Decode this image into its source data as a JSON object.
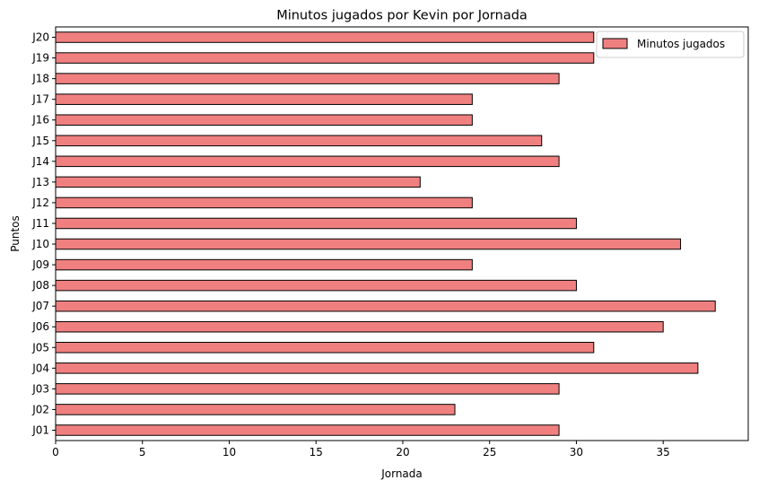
{
  "chart_data": {
    "type": "bar",
    "orientation": "horizontal",
    "title": "Minutos jugados por Kevin por Jornada",
    "xlabel": "Jornada",
    "ylabel": "Puntos",
    "categories": [
      "J01",
      "J02",
      "J03",
      "J04",
      "J05",
      "J06",
      "J07",
      "J08",
      "J09",
      "J10",
      "J11",
      "J12",
      "J13",
      "J14",
      "J15",
      "J16",
      "J17",
      "J18",
      "J19",
      "J20"
    ],
    "series": [
      {
        "name": "Minutos jugados",
        "values": [
          29,
          23,
          29,
          37,
          31,
          35,
          38,
          30,
          24,
          36,
          30,
          24,
          21,
          29,
          28,
          24,
          24,
          29,
          31,
          31
        ]
      }
    ],
    "xlim": [
      0,
      39.9
    ],
    "xticks": [
      0,
      5,
      10,
      15,
      20,
      25,
      30,
      35
    ],
    "grid": false,
    "legend_position": "top-right",
    "bar_color": "#f08080",
    "edge_color": "#000000"
  }
}
